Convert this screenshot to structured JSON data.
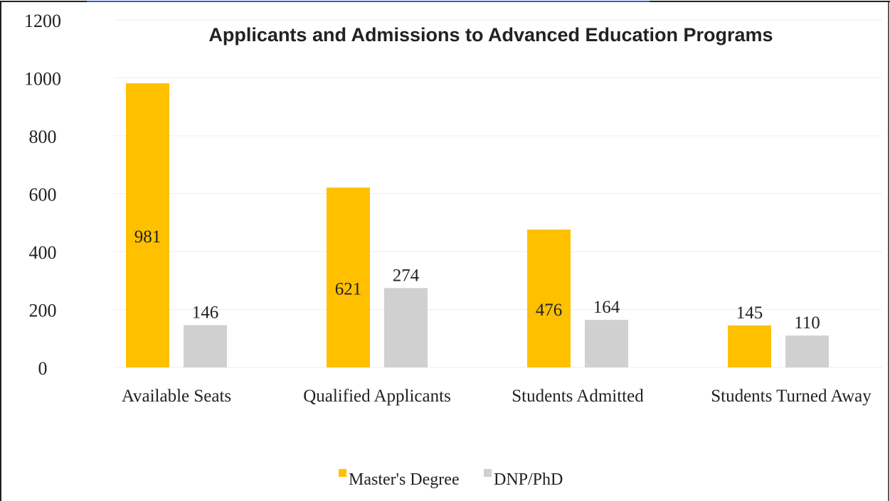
{
  "chart_data": {
    "type": "bar",
    "title": "Applicants and Admissions to Advanced Education Programs",
    "xlabel": "",
    "ylabel": "",
    "categories": [
      "Available Seats",
      "Qualified Applicants",
      "Students Admitted",
      "Students Turned Away"
    ],
    "series": [
      {
        "name": "Master's Degree",
        "values": [
          981,
          621,
          476,
          145
        ],
        "color": "#FFC000"
      },
      {
        "name": "DNP/PhD",
        "values": [
          146,
          274,
          164,
          110
        ],
        "color": "#D0D0D0"
      }
    ],
    "ylim": [
      0,
      1200
    ],
    "yticks": [
      0,
      200,
      400,
      600,
      800,
      1000,
      1200
    ],
    "grid": true,
    "legend": "bottom",
    "data_labels": true
  },
  "colors": {
    "frame": "#222222",
    "link_line": "#2E5FD0",
    "grid": "#EDEDED",
    "text": "#222222"
  }
}
